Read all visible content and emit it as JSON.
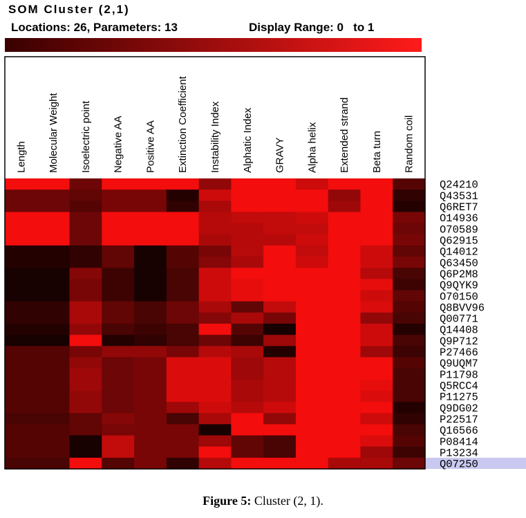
{
  "header": {
    "title": "SOM Cluster (2,1)",
    "locations": "Locations: 26, Parameters: 13",
    "display_range": "Display Range: 0   to 1"
  },
  "caption": {
    "label": "Figure 5:",
    "text": " Cluster (2, 1)."
  },
  "colors": {
    "low": "#000000",
    "high": "#ff0000",
    "selected_row": "#c8c8f0"
  },
  "chart_data": {
    "type": "heatmap",
    "title": "SOM Cluster (2,1)",
    "color_scale": {
      "min": 0,
      "max": 1,
      "low_color": "#000000",
      "high_color": "#ff0000"
    },
    "columns": [
      "Length",
      "Molecular Weight",
      "Isoelectric point",
      "Negative AA",
      "Positive AA",
      "Extinction Coefficient",
      "Instability Index",
      "Alphatic Index",
      "GRAVY",
      "Alpha helix",
      "Extended strand",
      "Beta turn",
      "Random coil"
    ],
    "rows": [
      "Q24210",
      "Q43531",
      "Q6RET7",
      "O14936",
      "O70589",
      "Q62915",
      "Q14012",
      "Q63450",
      "Q6P2M8",
      "Q9QYK9",
      "O70150",
      "Q8BVV96",
      "Q00771",
      "Q14408",
      "Q9P712",
      "P27466",
      "Q9UQM7",
      "P11798",
      "Q5RCC4",
      "P11275",
      "Q9DG02",
      "P22517",
      "Q16566",
      "P08414",
      "P13234",
      "Q07250"
    ],
    "selected_row": "Q07250",
    "values": [
      [
        0.95,
        0.95,
        0.4,
        0.95,
        0.95,
        0.95,
        0.55,
        0.95,
        0.95,
        0.8,
        0.95,
        0.95,
        0.3
      ],
      [
        0.4,
        0.4,
        0.35,
        0.45,
        0.45,
        0.1,
        0.8,
        0.95,
        0.95,
        0.95,
        0.55,
        0.95,
        0.15
      ],
      [
        0.4,
        0.4,
        0.3,
        0.45,
        0.45,
        0.15,
        0.65,
        0.95,
        0.95,
        0.95,
        0.6,
        0.95,
        0.1
      ],
      [
        0.95,
        0.95,
        0.4,
        0.95,
        0.95,
        0.95,
        0.7,
        0.75,
        0.75,
        0.8,
        0.95,
        0.95,
        0.45
      ],
      [
        0.95,
        0.95,
        0.4,
        0.95,
        0.95,
        0.95,
        0.7,
        0.7,
        0.75,
        0.75,
        0.95,
        0.95,
        0.4
      ],
      [
        0.95,
        0.95,
        0.4,
        0.95,
        0.95,
        0.95,
        0.65,
        0.7,
        0.7,
        0.8,
        0.95,
        0.95,
        0.45
      ],
      [
        0.1,
        0.1,
        0.15,
        0.35,
        0.05,
        0.3,
        0.45,
        0.7,
        0.95,
        0.75,
        0.95,
        0.8,
        0.35
      ],
      [
        0.1,
        0.1,
        0.15,
        0.35,
        0.05,
        0.3,
        0.5,
        0.65,
        0.95,
        0.8,
        0.95,
        0.8,
        0.45
      ],
      [
        0.05,
        0.05,
        0.5,
        0.2,
        0.05,
        0.25,
        0.8,
        0.95,
        0.95,
        0.95,
        0.95,
        0.7,
        0.25
      ],
      [
        0.05,
        0.05,
        0.45,
        0.2,
        0.05,
        0.25,
        0.8,
        0.9,
        0.95,
        0.95,
        0.95,
        0.9,
        0.2
      ],
      [
        0.05,
        0.05,
        0.45,
        0.2,
        0.05,
        0.25,
        0.8,
        0.9,
        0.95,
        0.95,
        0.95,
        0.8,
        0.35
      ],
      [
        0.15,
        0.15,
        0.65,
        0.35,
        0.25,
        0.4,
        0.65,
        0.35,
        0.75,
        0.95,
        0.95,
        0.85,
        0.3
      ],
      [
        0.15,
        0.15,
        0.65,
        0.35,
        0.25,
        0.4,
        0.5,
        0.65,
        0.45,
        0.95,
        0.95,
        0.55,
        0.25
      ],
      [
        0.1,
        0.1,
        0.55,
        0.25,
        0.2,
        0.25,
        0.95,
        0.3,
        0.05,
        0.95,
        0.95,
        0.8,
        0.1
      ],
      [
        0.05,
        0.05,
        0.95,
        0.1,
        0.15,
        0.25,
        0.4,
        0.2,
        0.6,
        0.95,
        0.95,
        0.8,
        0.25
      ],
      [
        0.3,
        0.3,
        0.45,
        0.55,
        0.55,
        0.45,
        0.7,
        0.65,
        0.1,
        0.95,
        0.95,
        0.6,
        0.2
      ],
      [
        0.3,
        0.3,
        0.55,
        0.4,
        0.45,
        0.85,
        0.85,
        0.6,
        0.7,
        0.95,
        0.95,
        0.95,
        0.3
      ],
      [
        0.3,
        0.3,
        0.6,
        0.4,
        0.45,
        0.85,
        0.85,
        0.6,
        0.7,
        0.95,
        0.95,
        0.95,
        0.25
      ],
      [
        0.3,
        0.3,
        0.6,
        0.4,
        0.45,
        0.85,
        0.85,
        0.65,
        0.7,
        0.95,
        0.95,
        0.9,
        0.25
      ],
      [
        0.3,
        0.3,
        0.55,
        0.4,
        0.45,
        0.85,
        0.85,
        0.65,
        0.7,
        0.95,
        0.95,
        0.85,
        0.25
      ],
      [
        0.3,
        0.3,
        0.55,
        0.4,
        0.45,
        0.6,
        0.8,
        0.7,
        0.8,
        0.95,
        0.95,
        0.95,
        0.1
      ],
      [
        0.25,
        0.25,
        0.35,
        0.5,
        0.45,
        0.25,
        0.65,
        0.95,
        0.55,
        0.95,
        0.95,
        0.8,
        0.15
      ],
      [
        0.3,
        0.3,
        0.35,
        0.45,
        0.45,
        0.45,
        0.05,
        0.95,
        0.95,
        0.95,
        0.95,
        0.95,
        0.25
      ],
      [
        0.3,
        0.3,
        0.05,
        0.75,
        0.45,
        0.45,
        0.6,
        0.35,
        0.25,
        0.95,
        0.95,
        0.85,
        0.3
      ],
      [
        0.3,
        0.3,
        0.05,
        0.75,
        0.45,
        0.45,
        0.95,
        0.35,
        0.25,
        0.95,
        0.95,
        0.6,
        0.2
      ],
      [
        0.25,
        0.25,
        0.95,
        0.3,
        0.45,
        0.15,
        0.7,
        0.95,
        0.95,
        0.95,
        0.65,
        0.65,
        0.4
      ]
    ]
  }
}
